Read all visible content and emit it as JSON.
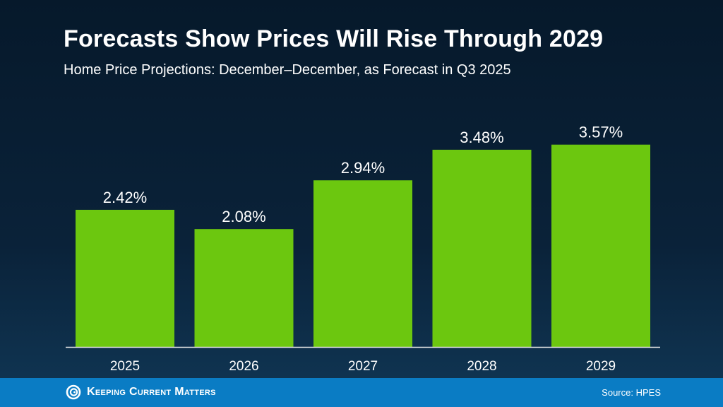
{
  "header": {
    "title": "Forecasts Show Prices Will Rise Through 2029",
    "subtitle": "Home Price Projections: December–December, as Forecast in Q3 2025"
  },
  "chart_data": {
    "type": "bar",
    "title": "Forecasts Show Prices Will Rise Through 2029",
    "subtitle": "Home Price Projections: December–December, as Forecast in Q3 2025",
    "categories": [
      "2025",
      "2026",
      "2027",
      "2028",
      "2029"
    ],
    "values": [
      2.42,
      2.08,
      2.94,
      3.48,
      3.57
    ],
    "labels": [
      "2.42%",
      "2.08%",
      "2.94%",
      "3.48%",
      "3.57%"
    ],
    "xlabel": "",
    "ylabel": "",
    "ylim": [
      0,
      4
    ],
    "grid": false,
    "bar_color": "#6cc70f"
  },
  "footer": {
    "logo_text": "Keeping Current Matters",
    "source": "Source: HPES"
  },
  "colors": {
    "footer": "#0a7cc4",
    "background": "#0a2239",
    "bar": "#6cc70f"
  }
}
